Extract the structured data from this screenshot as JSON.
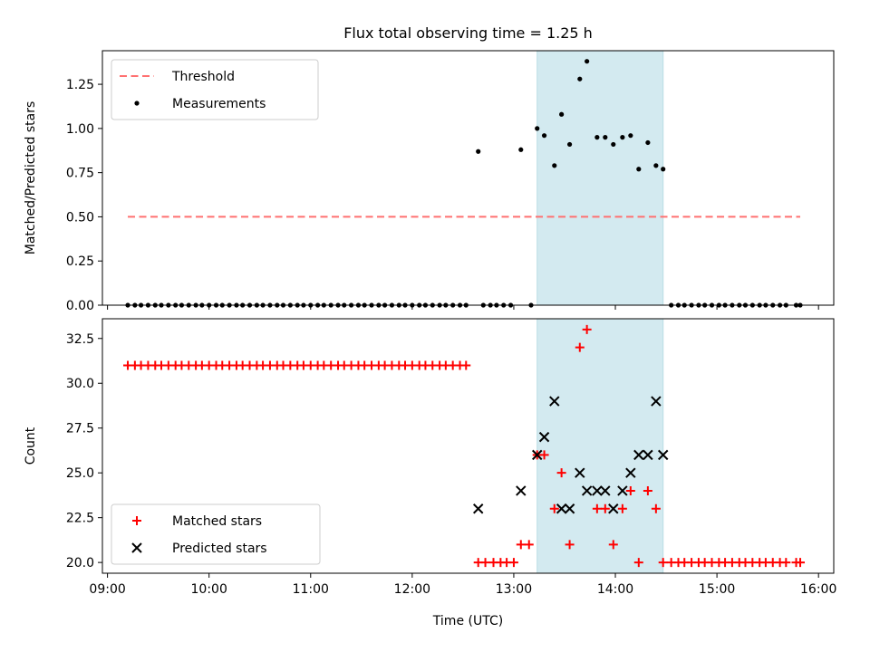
{
  "chart_data": [
    {
      "type": "scatter",
      "title": "Flux total observing time = 1.25 h",
      "ylabel": "Matched/Predicted stars",
      "xlabel": "",
      "xlim": [
        8.95,
        16.15
      ],
      "ylim": [
        0,
        1.44
      ],
      "xticks": [
        9,
        10,
        11,
        12,
        13,
        14,
        15,
        16
      ],
      "xtick_labels": [
        "",
        "",
        "",
        "",
        "",
        "",
        "",
        ""
      ],
      "yticks": [
        0,
        0.25,
        0.5,
        0.75,
        1.0,
        1.25
      ],
      "ytick_labels": [
        "0.00",
        "0.25",
        "0.50",
        "0.75",
        "1.00",
        "1.25"
      ],
      "highlight_span": [
        13.23,
        14.47
      ],
      "highlight_color": "#d3eaf0",
      "legend_position": "top-left",
      "series": [
        {
          "name": "Threshold",
          "kind": "line",
          "style": "dashed",
          "color": "#ff7070",
          "x": [
            9.2,
            15.82
          ],
          "y": [
            0.5,
            0.5
          ]
        },
        {
          "name": "Measurements",
          "kind": "scatter",
          "marker": "dot",
          "color": "#000000",
          "x": [
            9.2,
            9.27,
            9.33,
            9.4,
            9.47,
            9.53,
            9.6,
            9.67,
            9.73,
            9.8,
            9.87,
            9.93,
            10.0,
            10.07,
            10.13,
            10.2,
            10.27,
            10.33,
            10.4,
            10.47,
            10.53,
            10.6,
            10.67,
            10.73,
            10.8,
            10.87,
            10.93,
            11.0,
            11.07,
            11.13,
            11.2,
            11.27,
            11.33,
            11.4,
            11.47,
            11.53,
            11.6,
            11.67,
            11.73,
            11.8,
            11.87,
            11.93,
            12.0,
            12.07,
            12.13,
            12.2,
            12.27,
            12.33,
            12.4,
            12.47,
            12.53,
            12.65,
            12.7,
            12.77,
            12.83,
            12.9,
            12.97,
            13.07,
            13.17,
            13.23,
            13.3,
            13.4,
            13.47,
            13.55,
            13.65,
            13.72,
            13.82,
            13.9,
            13.98,
            14.07,
            14.15,
            14.23,
            14.32,
            14.4,
            14.47,
            14.55,
            14.62,
            14.68,
            14.75,
            14.82,
            14.88,
            14.95,
            15.02,
            15.08,
            15.15,
            15.22,
            15.28,
            15.35,
            15.42,
            15.48,
            15.55,
            15.62,
            15.68,
            15.78,
            15.82
          ],
          "y": [
            0,
            0,
            0,
            0,
            0,
            0,
            0,
            0,
            0,
            0,
            0,
            0,
            0,
            0,
            0,
            0,
            0,
            0,
            0,
            0,
            0,
            0,
            0,
            0,
            0,
            0,
            0,
            0,
            0,
            0,
            0,
            0,
            0,
            0,
            0,
            0,
            0,
            0,
            0,
            0,
            0,
            0,
            0,
            0,
            0,
            0,
            0,
            0,
            0,
            0,
            0,
            0.87,
            0,
            0,
            0,
            0,
            0,
            0.88,
            0,
            1.0,
            0.96,
            0.79,
            1.08,
            0.91,
            1.28,
            1.38,
            0.95,
            0.95,
            0.91,
            0.95,
            0.96,
            0.77,
            0.92,
            0.79,
            0.77,
            0,
            0,
            0,
            0,
            0,
            0,
            0,
            0,
            0,
            0,
            0,
            0,
            0,
            0,
            0,
            0,
            0,
            0,
            0,
            0
          ]
        }
      ]
    },
    {
      "type": "scatter",
      "title": "",
      "ylabel": "Count",
      "xlabel": "Time (UTC)",
      "xlim": [
        8.95,
        16.15
      ],
      "ylim": [
        19.4,
        33.6
      ],
      "xticks": [
        9,
        10,
        11,
        12,
        13,
        14,
        15,
        16
      ],
      "xtick_labels": [
        "09:00",
        "10:00",
        "11:00",
        "12:00",
        "13:00",
        "14:00",
        "15:00",
        "16:00"
      ],
      "yticks": [
        20,
        22.5,
        25,
        27.5,
        30,
        32.5
      ],
      "ytick_labels": [
        "20.0",
        "22.5",
        "25.0",
        "27.5",
        "30.0",
        "32.5"
      ],
      "highlight_span": [
        13.23,
        14.47
      ],
      "highlight_color": "#d3eaf0",
      "legend_position": "bottom-left",
      "series": [
        {
          "name": "Matched stars",
          "kind": "scatter",
          "marker": "plus",
          "color": "#ff0000",
          "x": [
            9.2,
            9.27,
            9.33,
            9.4,
            9.47,
            9.53,
            9.6,
            9.67,
            9.73,
            9.8,
            9.87,
            9.93,
            10.0,
            10.07,
            10.13,
            10.2,
            10.27,
            10.33,
            10.4,
            10.47,
            10.53,
            10.6,
            10.67,
            10.73,
            10.8,
            10.87,
            10.93,
            11.0,
            11.07,
            11.13,
            11.2,
            11.27,
            11.33,
            11.4,
            11.47,
            11.53,
            11.6,
            11.67,
            11.73,
            11.8,
            11.87,
            11.93,
            12.0,
            12.07,
            12.13,
            12.2,
            12.27,
            12.33,
            12.4,
            12.47,
            12.53,
            12.65,
            12.72,
            12.8,
            12.87,
            12.93,
            13.0,
            13.07,
            13.15,
            13.23,
            13.3,
            13.4,
            13.47,
            13.55,
            13.65,
            13.72,
            13.82,
            13.9,
            13.98,
            14.07,
            14.15,
            14.23,
            14.32,
            14.4,
            14.47,
            14.55,
            14.62,
            14.68,
            14.75,
            14.82,
            14.88,
            14.95,
            15.02,
            15.08,
            15.15,
            15.22,
            15.28,
            15.35,
            15.42,
            15.48,
            15.55,
            15.62,
            15.68,
            15.78,
            15.82
          ],
          "y": [
            31,
            31,
            31,
            31,
            31,
            31,
            31,
            31,
            31,
            31,
            31,
            31,
            31,
            31,
            31,
            31,
            31,
            31,
            31,
            31,
            31,
            31,
            31,
            31,
            31,
            31,
            31,
            31,
            31,
            31,
            31,
            31,
            31,
            31,
            31,
            31,
            31,
            31,
            31,
            31,
            31,
            31,
            31,
            31,
            31,
            31,
            31,
            31,
            31,
            31,
            31,
            20,
            20,
            20,
            20,
            20,
            20,
            21,
            21,
            26,
            26,
            23,
            25,
            21,
            32,
            33,
            23,
            23,
            21,
            23,
            24,
            20,
            24,
            23,
            20,
            20,
            20,
            20,
            20,
            20,
            20,
            20,
            20,
            20,
            20,
            20,
            20,
            20,
            20,
            20,
            20,
            20,
            20,
            20,
            20
          ]
        },
        {
          "name": "Predicted stars",
          "kind": "scatter",
          "marker": "x",
          "color": "#000000",
          "x": [
            12.65,
            13.07,
            13.23,
            13.3,
            13.4,
            13.47,
            13.55,
            13.65,
            13.72,
            13.82,
            13.9,
            13.98,
            14.07,
            14.15,
            14.23,
            14.32,
            14.4,
            14.47
          ],
          "y": [
            23,
            24,
            26,
            27,
            29,
            23,
            23,
            25,
            24,
            24,
            24,
            23,
            24,
            25,
            26,
            26,
            29,
            26
          ]
        }
      ]
    }
  ]
}
